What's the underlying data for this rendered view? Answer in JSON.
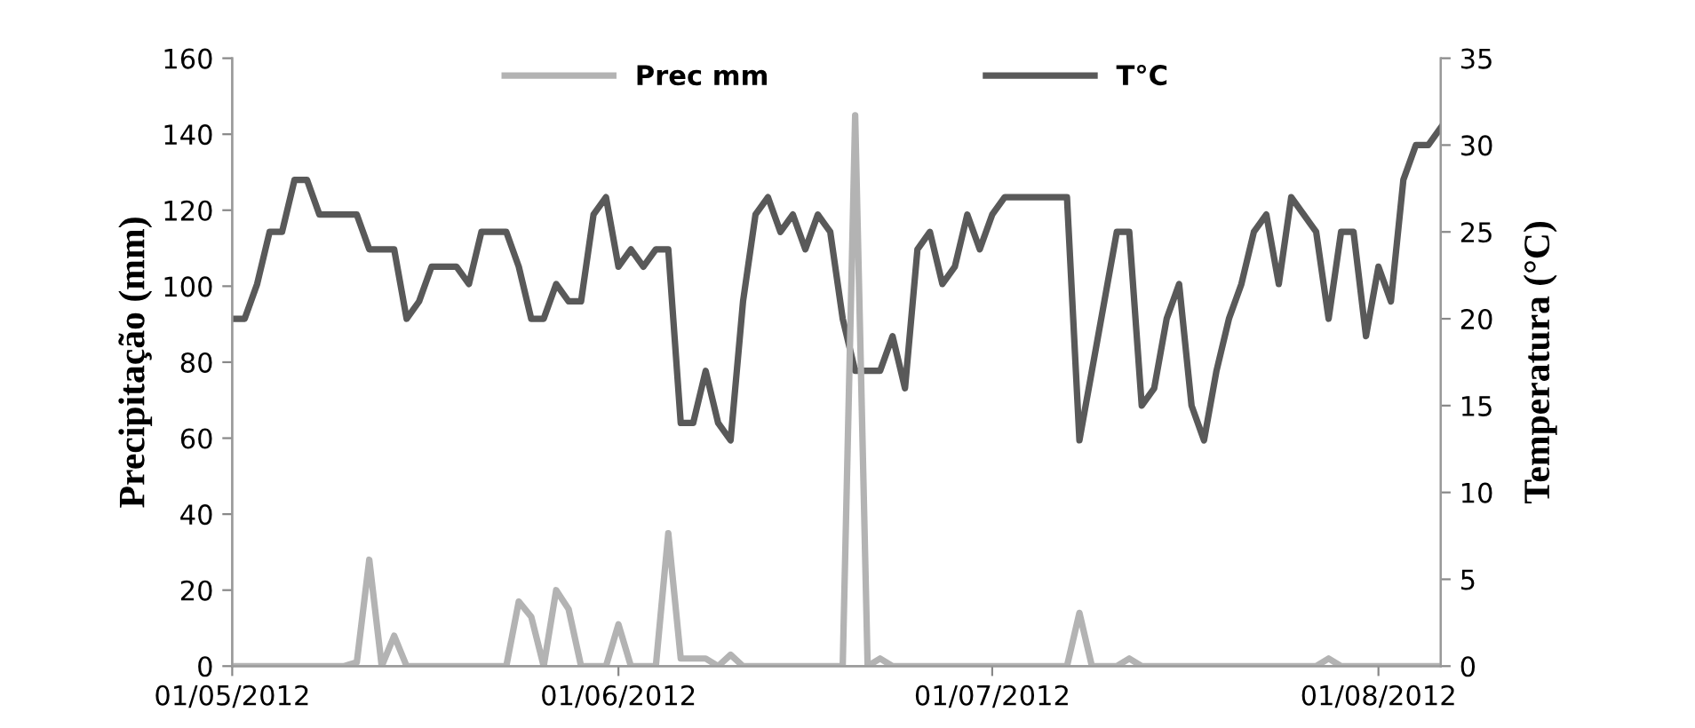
{
  "chart_data": {
    "type": "line",
    "ylabel": "Precipitação (mm)",
    "y2label": "Temperatura (°C)",
    "x": [
      "2012-05-01",
      "2012-05-02",
      "2012-05-03",
      "2012-05-04",
      "2012-05-05",
      "2012-05-06",
      "2012-05-07",
      "2012-05-08",
      "2012-05-09",
      "2012-05-10",
      "2012-05-11",
      "2012-05-12",
      "2012-05-13",
      "2012-05-14",
      "2012-05-15",
      "2012-05-16",
      "2012-05-17",
      "2012-05-18",
      "2012-05-19",
      "2012-05-20",
      "2012-05-21",
      "2012-05-22",
      "2012-05-23",
      "2012-05-24",
      "2012-05-25",
      "2012-05-26",
      "2012-05-27",
      "2012-05-28",
      "2012-05-29",
      "2012-05-30",
      "2012-05-31",
      "2012-06-01",
      "2012-06-02",
      "2012-06-03",
      "2012-06-04",
      "2012-06-05",
      "2012-06-06",
      "2012-06-07",
      "2012-06-08",
      "2012-06-09",
      "2012-06-10",
      "2012-06-11",
      "2012-06-12",
      "2012-06-13",
      "2012-06-14",
      "2012-06-15",
      "2012-06-16",
      "2012-06-17",
      "2012-06-18",
      "2012-06-19",
      "2012-06-20",
      "2012-06-21",
      "2012-06-22",
      "2012-06-23",
      "2012-06-24",
      "2012-06-25",
      "2012-06-26",
      "2012-06-27",
      "2012-06-28",
      "2012-06-29",
      "2012-06-30",
      "2012-07-01",
      "2012-07-02",
      "2012-07-03",
      "2012-07-04",
      "2012-07-05",
      "2012-07-06",
      "2012-07-07",
      "2012-07-08",
      "2012-07-09",
      "2012-07-10",
      "2012-07-11",
      "2012-07-12",
      "2012-07-13",
      "2012-07-14",
      "2012-07-15",
      "2012-07-16",
      "2012-07-17",
      "2012-07-18",
      "2012-07-19",
      "2012-07-20",
      "2012-07-21",
      "2012-07-22",
      "2012-07-23",
      "2012-07-24",
      "2012-07-25",
      "2012-07-26",
      "2012-07-27",
      "2012-07-28",
      "2012-07-29",
      "2012-07-30",
      "2012-07-31",
      "2012-08-01",
      "2012-08-02",
      "2012-08-03",
      "2012-08-04",
      "2012-08-05",
      "2012-08-06"
    ],
    "series": [
      {
        "name": "Prec mm",
        "color": "#b3b3b3",
        "values": [
          0,
          0,
          0,
          0,
          0,
          0,
          0,
          0,
          0,
          0,
          1,
          28,
          0,
          8,
          0,
          0,
          0,
          0,
          0,
          0,
          0,
          0,
          0,
          17,
          13,
          0,
          20,
          15,
          0,
          0,
          0,
          11,
          0,
          0,
          0,
          35,
          2,
          2,
          2,
          0,
          3,
          0,
          0,
          0,
          0,
          0,
          0,
          0,
          0,
          0,
          145,
          0,
          2,
          0,
          0,
          0,
          0,
          0,
          0,
          0,
          0,
          0,
          0,
          0,
          0,
          0,
          0,
          0,
          14,
          0,
          0,
          0,
          2,
          0,
          0,
          0,
          0,
          0,
          0,
          0,
          0,
          0,
          0,
          0,
          0,
          0,
          0,
          0,
          2,
          0,
          0,
          0,
          0,
          0,
          0,
          0,
          0,
          0
        ]
      },
      {
        "name": "T°C",
        "color": "#595959",
        "axis": "y2",
        "values": [
          20,
          20,
          22,
          25,
          25,
          28,
          28,
          26,
          26,
          26,
          26,
          24,
          24,
          24,
          20,
          21,
          23,
          23,
          23,
          22,
          25,
          25,
          25,
          23,
          20,
          20,
          22,
          21,
          21,
          26,
          27,
          23,
          24,
          23,
          24,
          24,
          14,
          14,
          17,
          14,
          13,
          21,
          26,
          27,
          25,
          26,
          24,
          26,
          25,
          20,
          17,
          17,
          17,
          19,
          16,
          24,
          25,
          22,
          23,
          26,
          24,
          26,
          27,
          27,
          27,
          27,
          27,
          27,
          13,
          17,
          21,
          25,
          25,
          15,
          16,
          20,
          22,
          15,
          13,
          17,
          20,
          22,
          25,
          26,
          22,
          27,
          26,
          25,
          20,
          25,
          25,
          19,
          23,
          21,
          28,
          30,
          30,
          31
        ]
      }
    ],
    "xlim": [
      "2012-05-01",
      "2012-08-06"
    ],
    "xticks": [
      {
        "value": "2012-05-01",
        "label": "01/05/2012"
      },
      {
        "value": "2012-06-01",
        "label": "01/06/2012"
      },
      {
        "value": "2012-07-01",
        "label": "01/07/2012"
      },
      {
        "value": "2012-08-01",
        "label": "01/08/2012"
      }
    ],
    "ylim": [
      0,
      160
    ],
    "yticks": [
      0,
      20,
      40,
      60,
      80,
      100,
      120,
      140,
      160
    ],
    "y2lim": [
      0,
      35
    ],
    "y2ticks": [
      0,
      5,
      10,
      15,
      20,
      25,
      30,
      35
    ],
    "legend": "top",
    "grid": false
  }
}
